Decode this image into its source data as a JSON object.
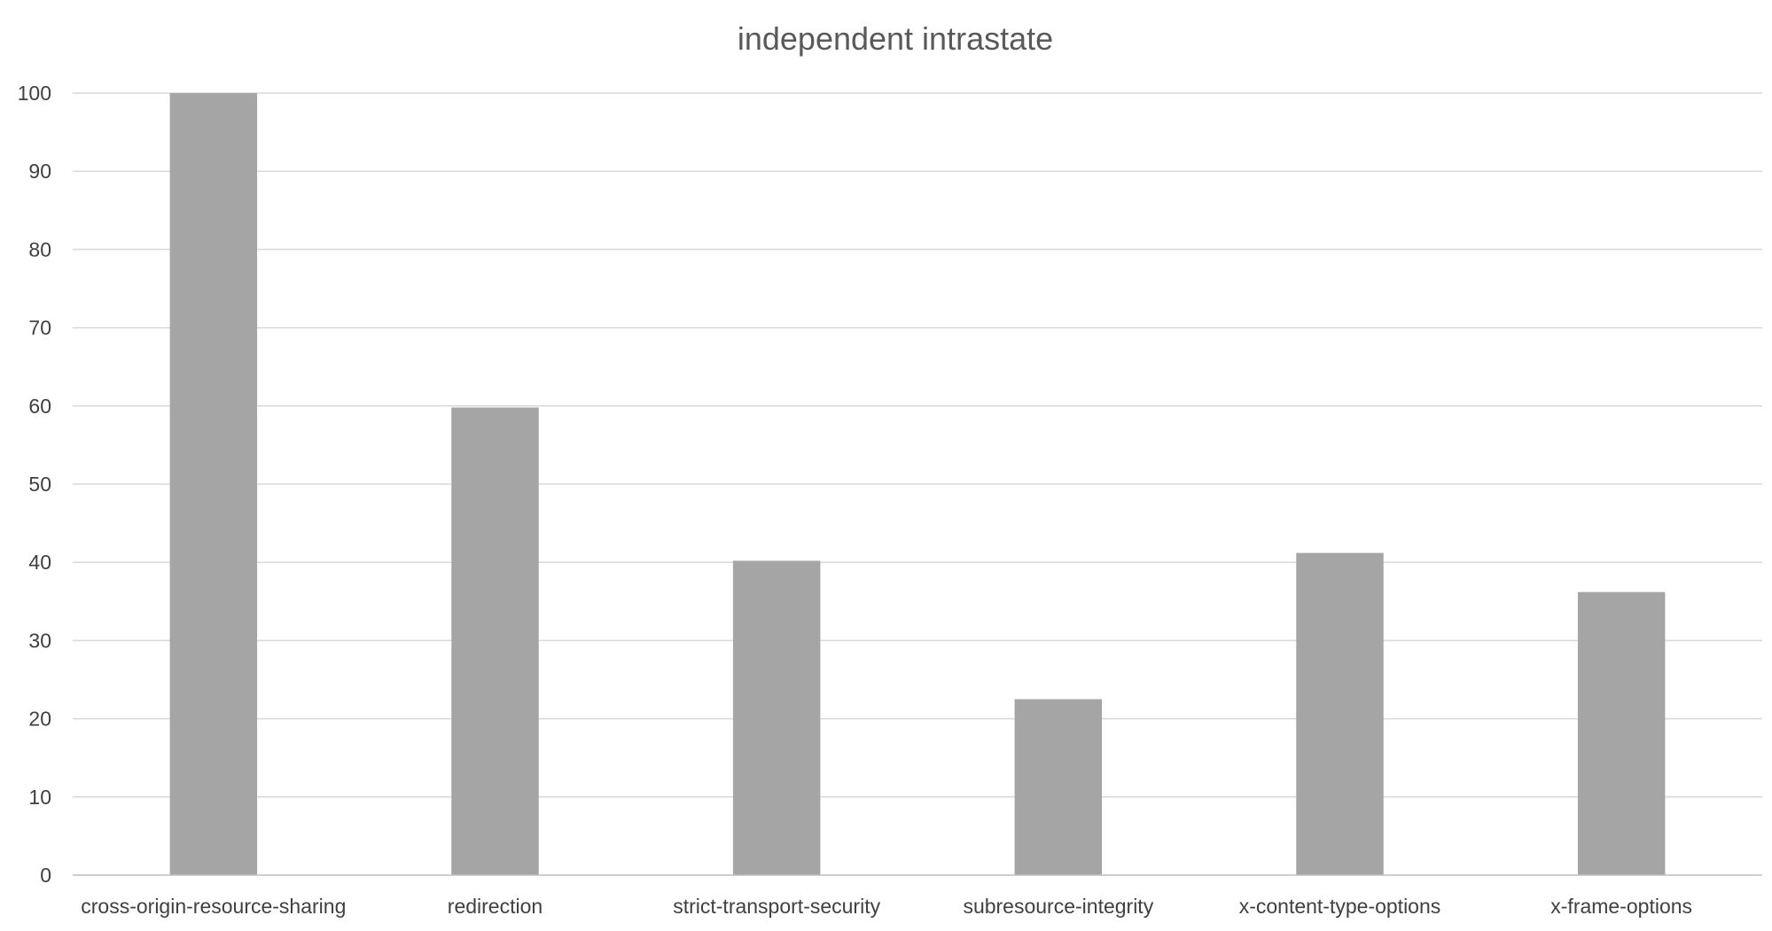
{
  "chart_data": {
    "type": "bar",
    "title": "independent intrastate",
    "xlabel": "",
    "ylabel": "",
    "categories": [
      "cross-origin-resource-sharing",
      "redirection",
      "strict-transport-security",
      "subresource-integrity",
      "x-content-type-options",
      "x-frame-options"
    ],
    "values": [
      100,
      59.8,
      40.2,
      22.5,
      41.2,
      36.2
    ],
    "ylim": [
      0,
      100
    ],
    "yticks": [
      "0",
      "10",
      "20",
      "30",
      "40",
      "50",
      "60",
      "70",
      "80",
      "90",
      "100"
    ],
    "grid": true,
    "legend": "none",
    "colors": {
      "bar": "#a5a5a5",
      "grid": "#d9d9d9",
      "axis": "#bfbfbf",
      "text": "#404040",
      "title": "#595959"
    }
  }
}
